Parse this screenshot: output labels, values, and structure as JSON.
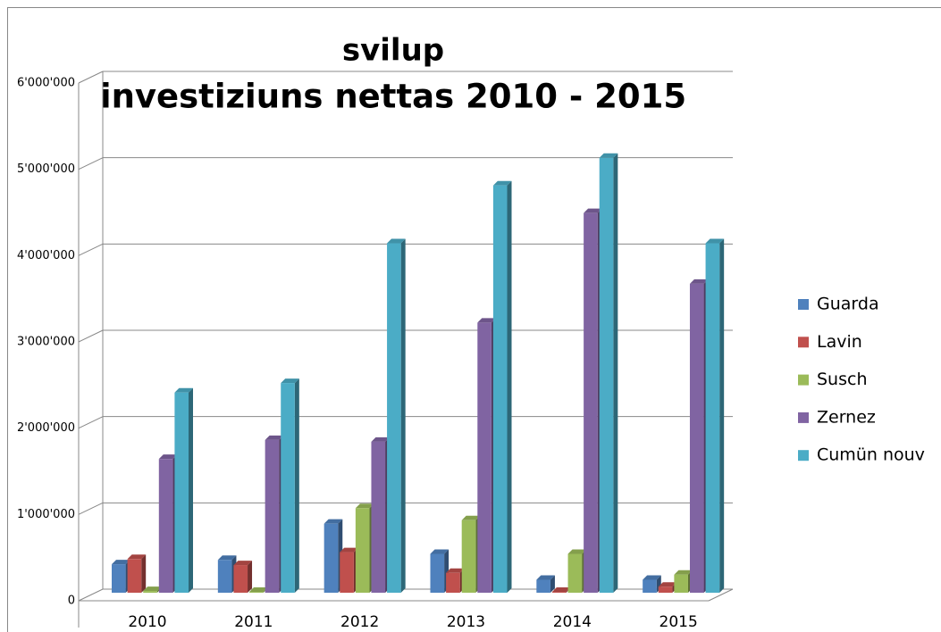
{
  "chart_data": {
    "type": "bar3d",
    "title": "svilup",
    "subtitle": "investiziuns nettas 2010 - 2015",
    "categories": [
      "2010",
      "2011",
      "2012",
      "2013",
      "2014",
      "2015"
    ],
    "series": [
      {
        "name": "Guarda",
        "color": "#4f81bd",
        "values": [
          330000,
          380000,
          800000,
          450000,
          150000,
          150000
        ]
      },
      {
        "name": "Lavin",
        "color": "#c0504d",
        "values": [
          390000,
          320000,
          470000,
          230000,
          10000,
          70000
        ]
      },
      {
        "name": "Susch",
        "color": "#9bbb59",
        "values": [
          20000,
          10000,
          980000,
          840000,
          450000,
          210000
        ]
      },
      {
        "name": "Zernez",
        "color": "#8064a2",
        "values": [
          1550000,
          1770000,
          1750000,
          3130000,
          4400000,
          3580000
        ]
      },
      {
        "name": "Cumün nouv",
        "color": "#4bacc6",
        "values": [
          2320000,
          2430000,
          4050000,
          4720000,
          5040000,
          4050000
        ]
      }
    ],
    "ylim": [
      0,
      6000000
    ],
    "yticks": [
      0,
      {
        "value": 1000000,
        "label": "1'000'000"
      },
      {
        "value": 2000000,
        "label": "2'000'000"
      },
      {
        "value": 3000000,
        "label": "3'000'000"
      },
      {
        "value": 4000000,
        "label": "4'000'000"
      },
      {
        "value": 5000000,
        "label": "5'000'000"
      },
      {
        "value": 6000000,
        "label": "6'000'000"
      }
    ],
    "grid": true,
    "legend": "right"
  }
}
